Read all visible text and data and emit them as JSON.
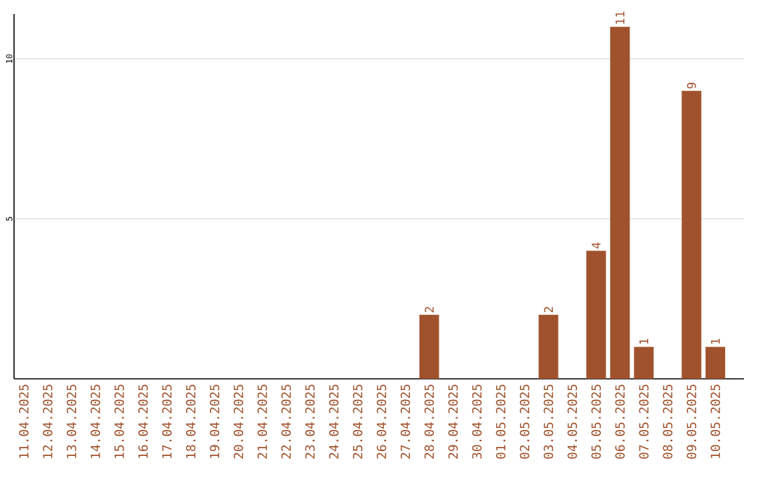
{
  "chart_data": {
    "type": "bar",
    "categories": [
      "11.04.2025",
      "12.04.2025",
      "13.04.2025",
      "14.04.2025",
      "15.04.2025",
      "16.04.2025",
      "17.04.2025",
      "18.04.2025",
      "19.04.2025",
      "20.04.2025",
      "21.04.2025",
      "22.04.2025",
      "23.04.2025",
      "24.04.2025",
      "25.04.2025",
      "26.04.2025",
      "27.04.2025",
      "28.04.2025",
      "29.04.2025",
      "30.04.2025",
      "01.05.2025",
      "02.05.2025",
      "03.05.2025",
      "04.05.2025",
      "05.05.2025",
      "06.05.2025",
      "07.05.2025",
      "08.05.2025",
      "09.05.2025",
      "10.05.2025"
    ],
    "values": [
      0,
      0,
      0,
      0,
      0,
      0,
      0,
      0,
      0,
      0,
      0,
      0,
      0,
      0,
      0,
      0,
      0,
      2,
      0,
      0,
      0,
      0,
      2,
      0,
      4,
      11,
      1,
      0,
      9,
      1
    ],
    "value_labels": [
      null,
      null,
      null,
      null,
      null,
      null,
      null,
      null,
      null,
      null,
      null,
      null,
      null,
      null,
      null,
      null,
      null,
      "2",
      null,
      null,
      null,
      null,
      "2",
      null,
      "4",
      "11",
      "1",
      null,
      "9",
      "1"
    ],
    "color": "#a0522d",
    "ylim": [
      0,
      11.4
    ],
    "yticks": [
      5,
      10
    ],
    "grid": "y"
  }
}
